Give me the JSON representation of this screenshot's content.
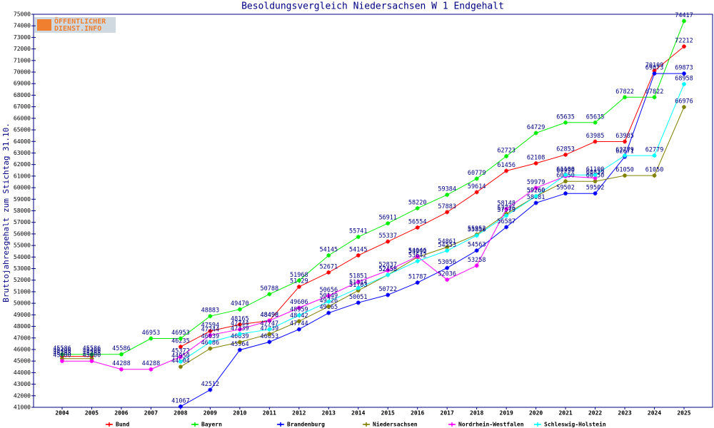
{
  "chart_data": {
    "type": "line",
    "title": "Besoldungsvergleich Niedersachsen W 1 Endgehalt",
    "y_label": "Bruttojahresgehalt zum Stichtag 31.10.",
    "logo": [
      "ÖFFENTLICHER",
      "DIENST.INFO"
    ],
    "categories": [
      "2004",
      "2005",
      "2006",
      "2007",
      "2008",
      "2009",
      "2010",
      "2011",
      "2012",
      "2013",
      "2014",
      "2015",
      "2016",
      "2017",
      "2018",
      "2019",
      "2020",
      "2021",
      "2022",
      "2023",
      "2024",
      "2025"
    ],
    "ylim": [
      41000,
      75000
    ],
    "yticks": [
      41000,
      42000,
      43000,
      44000,
      45000,
      46000,
      47000,
      48000,
      49000,
      50000,
      51000,
      52000,
      53000,
      54000,
      55000,
      56000,
      57000,
      58000,
      59000,
      60000,
      61000,
      62000,
      63000,
      64000,
      65000,
      66000,
      67000,
      68000,
      69000,
      70000,
      71000,
      72000,
      73000,
      74000,
      75000
    ],
    "grid": false,
    "legend_position": "bottom",
    "series": [
      {
        "name": "Bund",
        "color": "#ff0000",
        "values": [
          45406,
          45406,
          null,
          null,
          46235,
          47594,
          48165,
          48498,
          51429,
          52671,
          54145,
          55337,
          56554,
          57883,
          59614,
          61456,
          62108,
          62853,
          63985,
          63985,
          70109,
          72212
        ]
      },
      {
        "name": "Bayern",
        "color": "#00ee00",
        "values": [
          45586,
          45586,
          45586,
          46953,
          46953,
          48883,
          49470,
          50788,
          51968,
          54145,
          55741,
          56911,
          58220,
          59384,
          60779,
          62723,
          64729,
          65635,
          65635,
          67822,
          67822,
          74417
        ]
      },
      {
        "name": "Brandenburg",
        "color": "#0000ff",
        "values": [
          null,
          null,
          null,
          null,
          41067,
          42512,
          45964,
          46653,
          47744,
          49165,
          50051,
          50722,
          51787,
          53056,
          54563,
          56587,
          58681,
          59502,
          59502,
          62671,
          69873,
          69873
        ]
      },
      {
        "name": "Niedersachsen",
        "color": "#808000",
        "values": [
          45208,
          45208,
          null,
          null,
          44504,
          46086,
          46639,
          47339,
          48442,
          49726,
          51103,
          52458,
          53992,
          54861,
          55952,
          57726,
          59260,
          60550,
          60550,
          61050,
          61050,
          66976
        ]
      },
      {
        "name": "Nordrhein-Westfalen",
        "color": "#ff00ff",
        "values": [
          45000,
          45000,
          44288,
          44288,
          45372,
          47244,
          47744,
          48498,
          49606,
          50656,
          51851,
          52837,
          54046,
          52036,
          53258,
          58148,
          59979,
          60990,
          60839,
          null,
          null,
          null
        ]
      },
      {
        "name": "Schleswig-Holstein",
        "color": "#00ffff",
        "values": [
          null,
          null,
          null,
          null,
          44950,
          46639,
          47339,
          47747,
          48959,
          50149,
          51314,
          52458,
          53642,
          54553,
          55856,
          57579,
          59260,
          61100,
          61100,
          62779,
          62779,
          68958
        ]
      }
    ]
  }
}
